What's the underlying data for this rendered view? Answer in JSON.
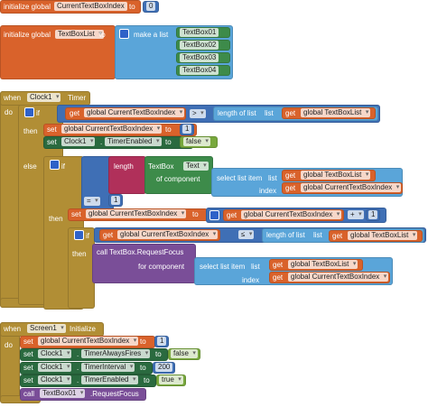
{
  "init_index": {
    "label": "initialize global",
    "name": "CurrentTextBoxIndex",
    "to": "to",
    "value": 0
  },
  "init_list": {
    "label": "initialize global",
    "name": "TextBoxList",
    "to": "to",
    "make_list": "make a list",
    "items": [
      "TextBox01",
      "TextBox02",
      "TextBox03",
      "TextBox04"
    ]
  },
  "timer": {
    "when": "when",
    "component": "Clock1",
    "event": "Timer",
    "do": "do",
    "if": {
      "if": "if",
      "then": "then",
      "else": "else",
      "condition": {
        "get": "get",
        "variable": "global CurrentTextBoxIndex",
        "operator": ">",
        "length_of_list": "length of list",
        "list": "list",
        "get_list": "get",
        "list_variable": "global TextBoxList"
      },
      "then_blocks": [
        {
          "set": "set",
          "variable": "global CurrentTextBoxIndex",
          "to": "to",
          "value": 1
        },
        {
          "set": "set",
          "component": "Clock1",
          "dot": ".",
          "property": "TimerEnabled",
          "to": "to",
          "value": "false"
        }
      ],
      "else_if": {
        "if": "if",
        "then": "then",
        "condition": {
          "operator": "=",
          "value": 1,
          "length": "length",
          "getter": {
            "component": "TextBox",
            "property": "Text",
            "of_component": "of component"
          },
          "select": {
            "label": "select list item",
            "list": "list",
            "index": "index",
            "get_list": "get",
            "list_variable": "global TextBoxList",
            "get_index": "get",
            "index_variable": "global CurrentTextBoxIndex"
          }
        },
        "set": {
          "set": "set",
          "variable": "global CurrentTextBoxIndex",
          "to": "to",
          "get": "get",
          "get_variable": "global CurrentTextBoxIndex",
          "operator": "+",
          "value": 1
        },
        "inner_if": {
          "if": "if",
          "then": "then",
          "condition": {
            "get": "get",
            "variable": "global CurrentTextBoxIndex",
            "operator": "≤",
            "length_of_list": "length of list",
            "list": "list",
            "get_list": "get",
            "list_variable": "global TextBoxList"
          },
          "call": {
            "label": "call TextBox.RequestFocus",
            "for_component": "for component",
            "select": {
              "label": "select list item",
              "list": "list",
              "index": "index",
              "get_list": "get",
              "list_variable": "global TextBoxList",
              "get_index": "get",
              "index_variable": "global CurrentTextBoxIndex"
            }
          }
        }
      }
    }
  },
  "screen": {
    "when": "when",
    "component": "Screen1",
    "event": "Initialize",
    "do": "do",
    "statements": [
      {
        "set": "set",
        "variable": "global CurrentTextBoxIndex",
        "to": "to",
        "value": 1
      },
      {
        "set": "set",
        "component": "Clock1",
        "dot": ".",
        "property": "TimerAlwaysFires",
        "to": "to",
        "value": "false"
      },
      {
        "set": "set",
        "component": "Clock1",
        "dot": ".",
        "property": "TimerInterval",
        "to": "to",
        "value": 200
      },
      {
        "set": "set",
        "component": "Clock1",
        "dot": ".",
        "property": "TimerEnabled",
        "to": "to",
        "value": "true"
      }
    ],
    "call": {
      "call": "call",
      "component": "TextBox01",
      "method": ".RequestFocus"
    }
  }
}
